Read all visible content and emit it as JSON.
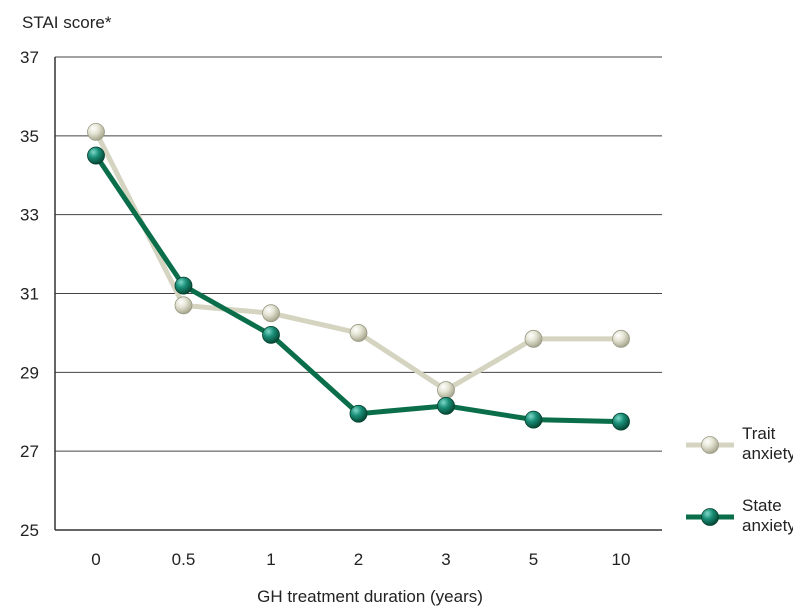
{
  "chart_data": {
    "type": "line",
    "title": "",
    "ylabel": "STAI score*",
    "xlabel": "GH treatment duration (years)",
    "categories": [
      "0",
      "0.5",
      "1",
      "2",
      "3",
      "5",
      "10"
    ],
    "y_ticks": [
      "25",
      "27",
      "29",
      "31",
      "33",
      "35",
      "37"
    ],
    "ylim": [
      25,
      37
    ],
    "grid": true,
    "legend_position": "right",
    "series": [
      {
        "name": "Trait anxiety",
        "name_lines": [
          "Trait",
          "anxiety"
        ],
        "color": "#d4d4c0",
        "values": [
          35.1,
          30.7,
          30.5,
          30.0,
          28.55,
          29.85,
          29.85
        ]
      },
      {
        "name": "State anxiety",
        "name_lines": [
          "State",
          "anxiety"
        ],
        "color": "#0a6e4a",
        "values": [
          34.5,
          31.2,
          29.95,
          27.95,
          28.15,
          27.8,
          27.75
        ]
      }
    ]
  }
}
